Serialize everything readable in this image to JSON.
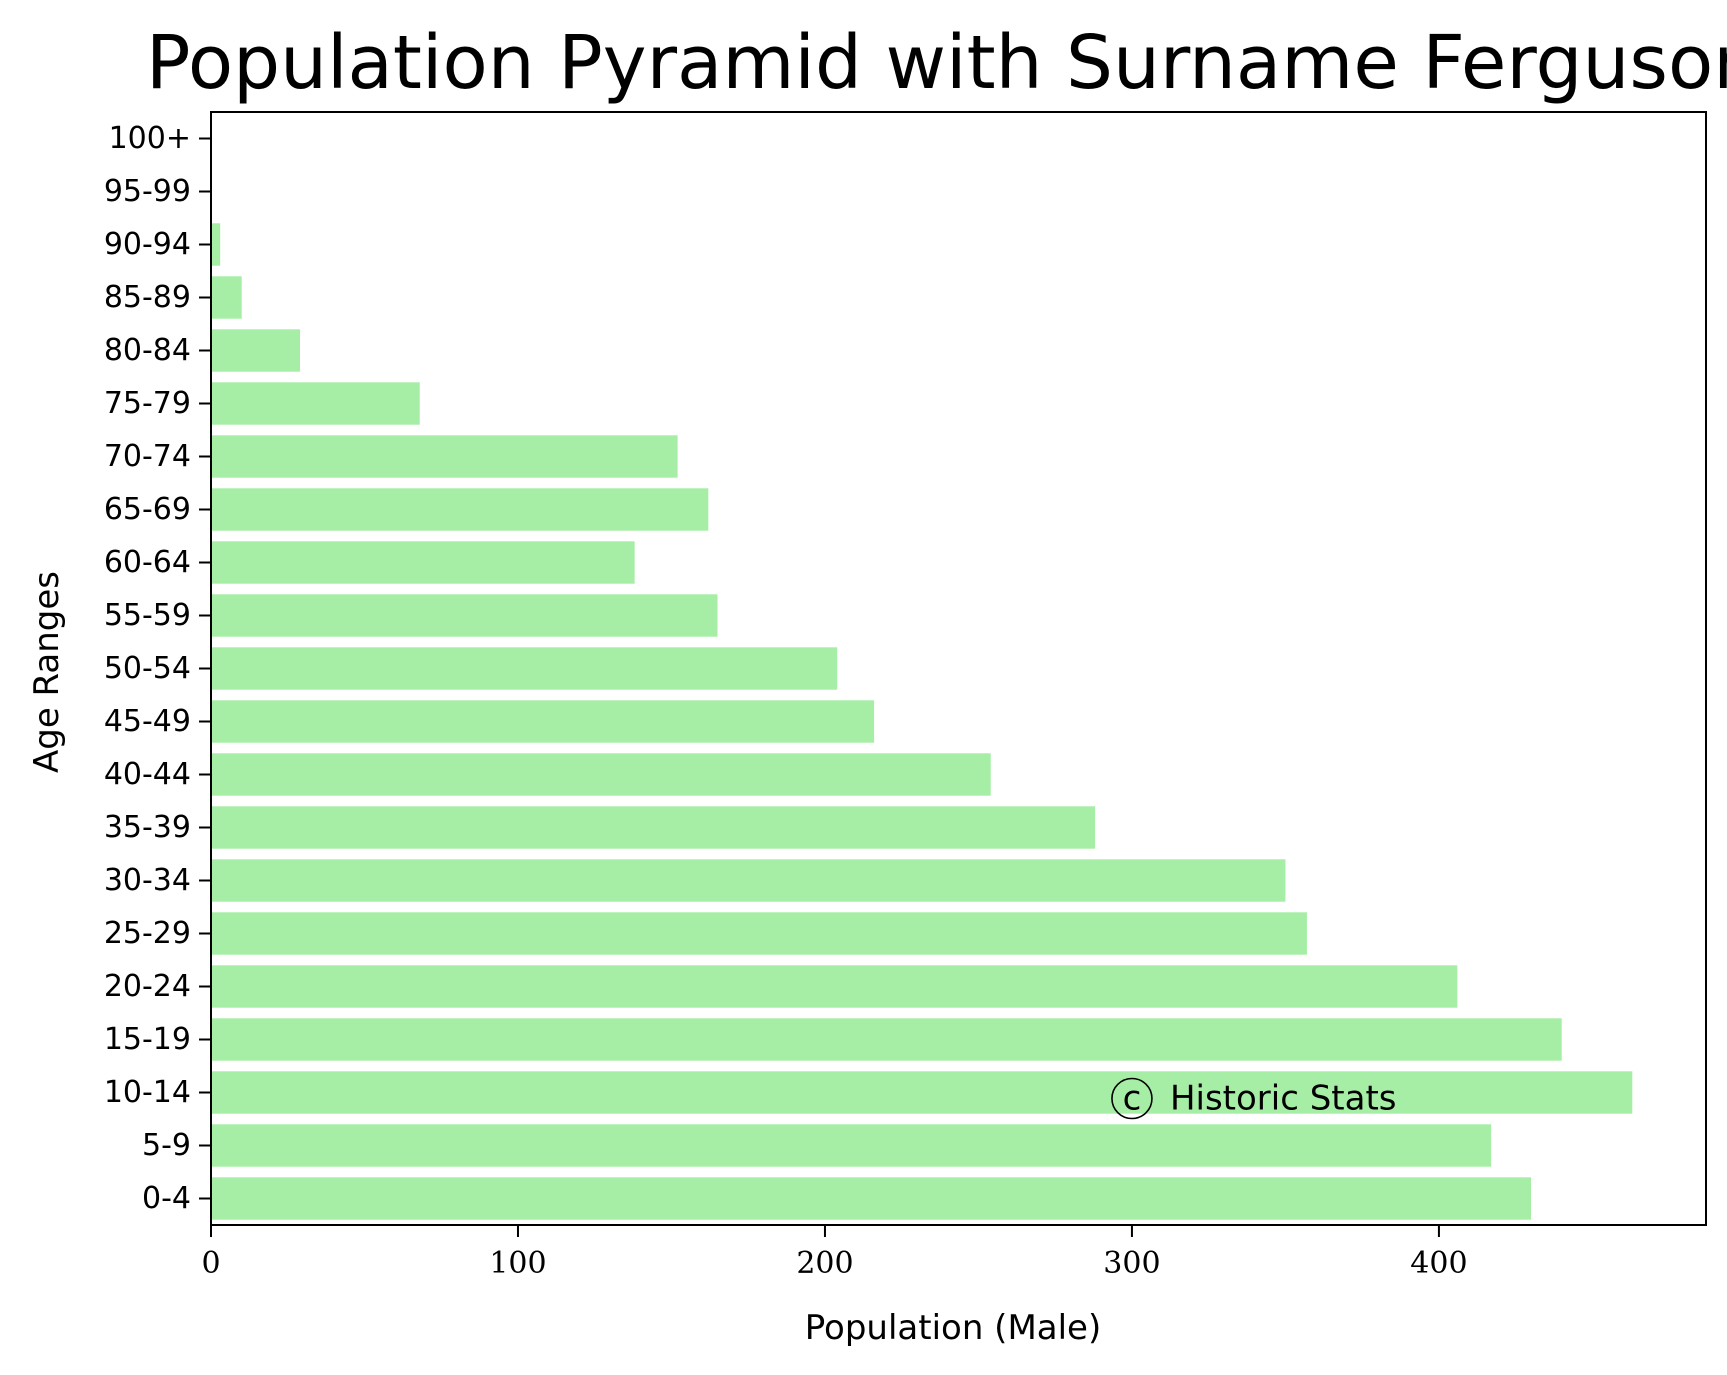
{
  "chart_data": {
    "type": "bar",
    "orientation": "horizontal",
    "title": "Population Pyramid with Surname Ferguson",
    "xlabel": "Population (Male)",
    "ylabel": "Age Ranges",
    "categories": [
      "0-4",
      "5-9",
      "10-14",
      "15-19",
      "20-24",
      "25-29",
      "30-34",
      "35-39",
      "40-44",
      "45-49",
      "50-54",
      "55-59",
      "60-64",
      "65-69",
      "70-74",
      "75-79",
      "80-84",
      "85-89",
      "90-94",
      "95-99",
      "100+"
    ],
    "values": [
      430,
      417,
      463,
      440,
      406,
      357,
      350,
      288,
      254,
      216,
      204,
      165,
      138,
      162,
      152,
      68,
      29,
      10,
      3,
      0,
      0
    ],
    "xlim": [
      0,
      487
    ],
    "xticks": [
      0,
      100,
      200,
      300,
      400
    ],
    "xtick_labels": [
      "0",
      "100",
      "200",
      "300",
      "400"
    ],
    "bar_color": "#a6eea6",
    "grid": false,
    "annotation": {
      "symbol": "c",
      "text": "Historic Stats",
      "x": 300,
      "category": "10-14"
    }
  }
}
